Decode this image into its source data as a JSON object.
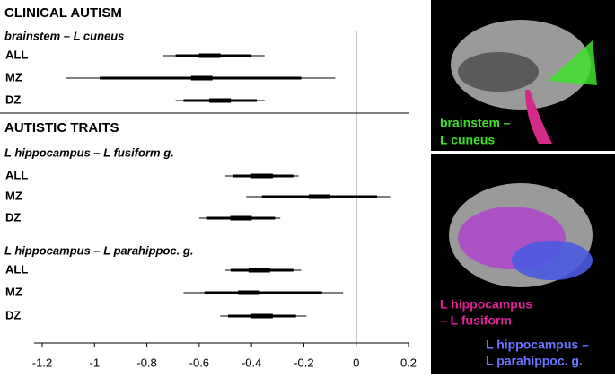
{
  "chart_data": {
    "type": "forest",
    "xlim": [
      -1.2,
      0.2
    ],
    "xticks": [
      -1.2,
      -1,
      -0.8,
      -0.6,
      -0.4,
      -0.2,
      0,
      0.2
    ],
    "sections": [
      {
        "title": "CLINICAL AUTISM",
        "groups": [
          {
            "title": "brainstem – L cuneus",
            "rows": [
              {
                "label": "ALL",
                "estimate": -0.56,
                "ci": [
                  -0.74,
                  -0.35
                ],
                "inner": [
                  -0.69,
                  -0.4
                ]
              },
              {
                "label": "MZ",
                "estimate": -0.59,
                "ci": [
                  -1.11,
                  -0.08
                ],
                "inner": [
                  -0.98,
                  -0.21
                ]
              },
              {
                "label": "DZ",
                "estimate": -0.52,
                "ci": [
                  -0.69,
                  -0.35
                ],
                "inner": [
                  -0.66,
                  -0.38
                ]
              }
            ]
          }
        ]
      },
      {
        "title": "AUTISTIC TRAITS",
        "groups": [
          {
            "title": "L hippocampus – L fusiform g.",
            "rows": [
              {
                "label": "ALL",
                "estimate": -0.36,
                "ci": [
                  -0.5,
                  -0.22
                ],
                "inner": [
                  -0.47,
                  -0.24
                ]
              },
              {
                "label": "MZ",
                "estimate": -0.14,
                "ci": [
                  -0.42,
                  0.13
                ],
                "inner": [
                  -0.36,
                  0.08
                ]
              },
              {
                "label": "DZ",
                "estimate": -0.44,
                "ci": [
                  -0.6,
                  -0.29
                ],
                "inner": [
                  -0.57,
                  -0.31
                ]
              }
            ]
          },
          {
            "title": "L hippocampus – L parahippoc. g.",
            "rows": [
              {
                "label": "ALL",
                "estimate": -0.37,
                "ci": [
                  -0.5,
                  -0.21
                ],
                "inner": [
                  -0.48,
                  -0.24
                ]
              },
              {
                "label": "MZ",
                "estimate": -0.41,
                "ci": [
                  -0.66,
                  -0.05
                ],
                "inner": [
                  -0.58,
                  -0.13
                ]
              },
              {
                "label": "DZ",
                "estimate": -0.36,
                "ci": [
                  -0.52,
                  -0.19
                ],
                "inner": [
                  -0.49,
                  -0.23
                ]
              }
            ]
          }
        ]
      }
    ],
    "annotations": [
      {
        "lines": [
          "brainstem –",
          "L cuneus"
        ],
        "color": "#3fe02a"
      },
      {
        "lines": [
          "L hippocampus",
          "– L fusiform"
        ],
        "color": "#e0209a"
      },
      {
        "lines": [
          "L hippocampus –",
          "L parahippoc. g."
        ],
        "color": "#6a74ff"
      }
    ]
  }
}
